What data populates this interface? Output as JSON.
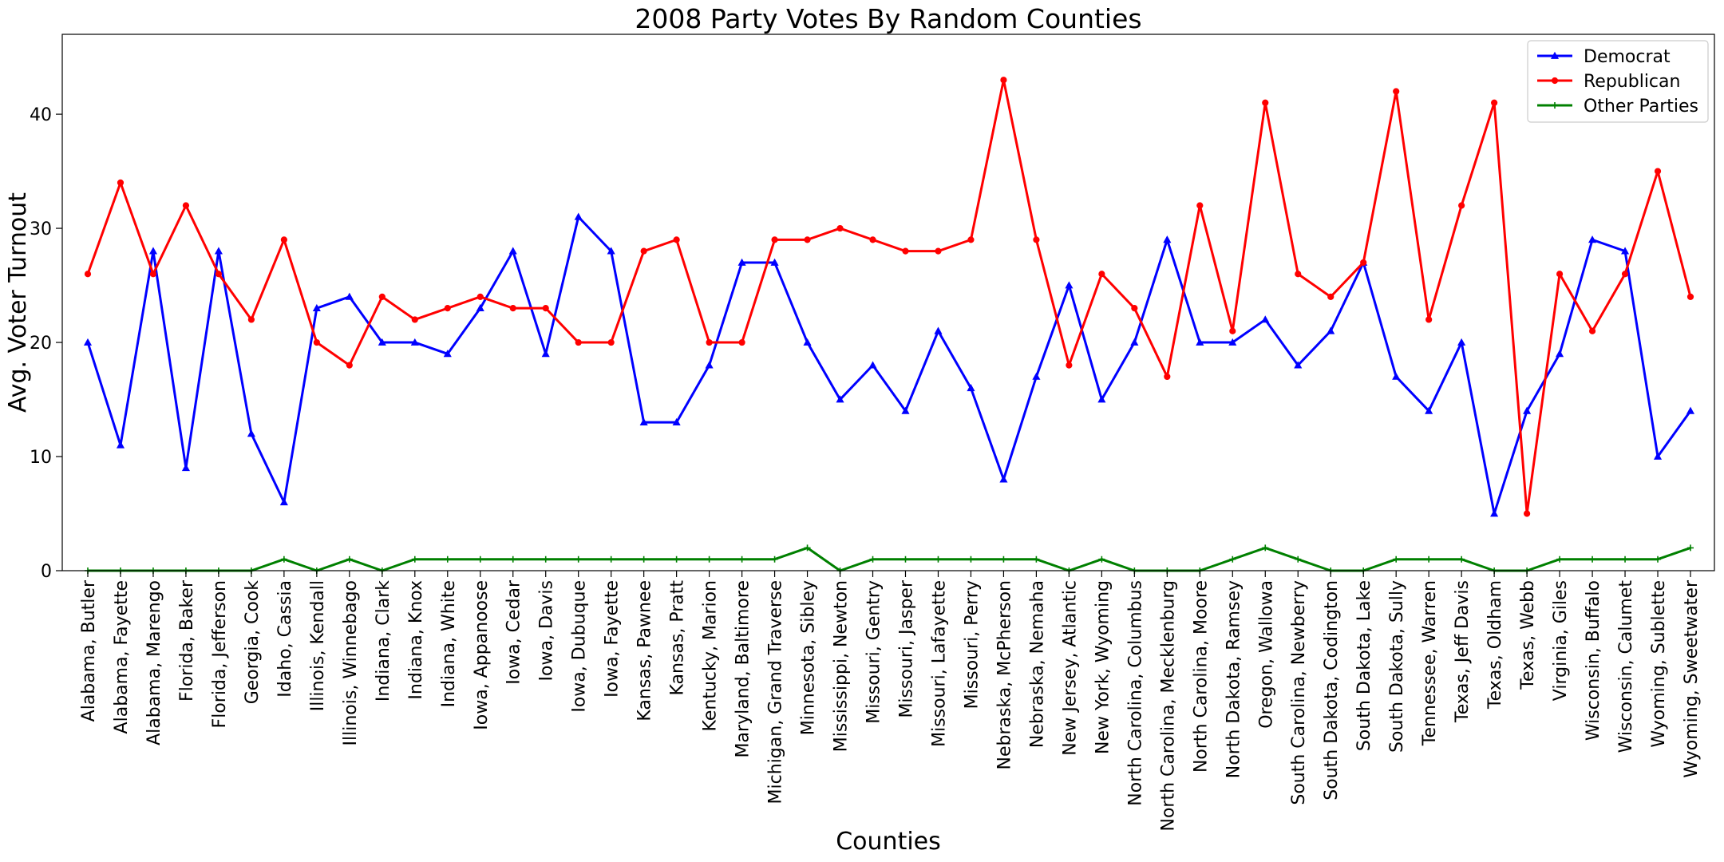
{
  "chart_data": {
    "type": "line",
    "title": "2008 Party Votes By Random Counties",
    "xlabel": "Counties",
    "ylabel": "Avg. Voter Turnout",
    "ylim": [
      0,
      47
    ],
    "yticks": [
      0,
      10,
      20,
      30,
      40
    ],
    "grid": false,
    "legend_position": "top-right",
    "categories": [
      "Alabama, Butler",
      "Alabama, Fayette",
      "Alabama, Marengo",
      "Florida, Baker",
      "Florida, Jefferson",
      "Georgia, Cook",
      "Idaho, Cassia",
      "Illinois, Kendall",
      "Illinois, Winnebago",
      "Indiana, Clark",
      "Indiana, Knox",
      "Indiana, White",
      "Iowa, Appanoose",
      "Iowa, Cedar",
      "Iowa, Davis",
      "Iowa, Dubuque",
      "Iowa, Fayette",
      "Kansas, Pawnee",
      "Kansas, Pratt",
      "Kentucky, Marion",
      "Maryland, Baltimore",
      "Michigan, Grand Traverse",
      "Minnesota, Sibley",
      "Mississippi, Newton",
      "Missouri, Gentry",
      "Missouri, Jasper",
      "Missouri, Lafayette",
      "Missouri, Perry",
      "Nebraska, McPherson",
      "Nebraska, Nemaha",
      "New Jersey, Atlantic",
      "New York, Wyoming",
      "North Carolina, Columbus",
      "North Carolina, Mecklenburg",
      "North Carolina, Moore",
      "North Dakota, Ramsey",
      "Oregon, Wallowa",
      "South Carolina, Newberry",
      "South Dakota, Codington",
      "South Dakota, Lake",
      "South Dakota, Sully",
      "Tennessee, Warren",
      "Texas, Jeff Davis",
      "Texas, Oldham",
      "Texas, Webb",
      "Virginia, Giles",
      "Wisconsin, Buffalo",
      "Wisconsin, Calumet",
      "Wyoming, Sublette",
      "Wyoming, Sweetwater"
    ],
    "series": [
      {
        "name": "Democrat",
        "color": "#0000ff",
        "marker": "triangle",
        "values": [
          20,
          11,
          28,
          9,
          28,
          12,
          6,
          23,
          24,
          20,
          20,
          19,
          23,
          28,
          19,
          31,
          28,
          13,
          13,
          18,
          27,
          27,
          20,
          15,
          18,
          14,
          21,
          16,
          8,
          17,
          25,
          15,
          20,
          29,
          20,
          20,
          22,
          18,
          21,
          27,
          17,
          14,
          20,
          5,
          14,
          19,
          29,
          28,
          10,
          14
        ]
      },
      {
        "name": "Republican",
        "color": "#ff0000",
        "marker": "circle",
        "values": [
          26,
          34,
          26,
          32,
          26,
          22,
          29,
          20,
          18,
          24,
          22,
          23,
          24,
          23,
          23,
          20,
          20,
          28,
          29,
          20,
          20,
          29,
          29,
          30,
          29,
          28,
          28,
          29,
          43,
          29,
          18,
          26,
          23,
          17,
          32,
          21,
          41,
          26,
          24,
          27,
          42,
          22,
          32,
          41,
          5,
          26,
          21,
          26,
          35,
          24
        ]
      },
      {
        "name": "Other Parties",
        "color": "#008000",
        "marker": "plus",
        "values": [
          0,
          0,
          0,
          0,
          0,
          0,
          1,
          0,
          1,
          0,
          1,
          1,
          1,
          1,
          1,
          1,
          1,
          1,
          1,
          1,
          1,
          1,
          2,
          0,
          1,
          1,
          1,
          1,
          1,
          1,
          0,
          1,
          0,
          0,
          0,
          1,
          2,
          1,
          0,
          0,
          1,
          1,
          1,
          0,
          0,
          1,
          1,
          1,
          1,
          2
        ]
      }
    ]
  }
}
